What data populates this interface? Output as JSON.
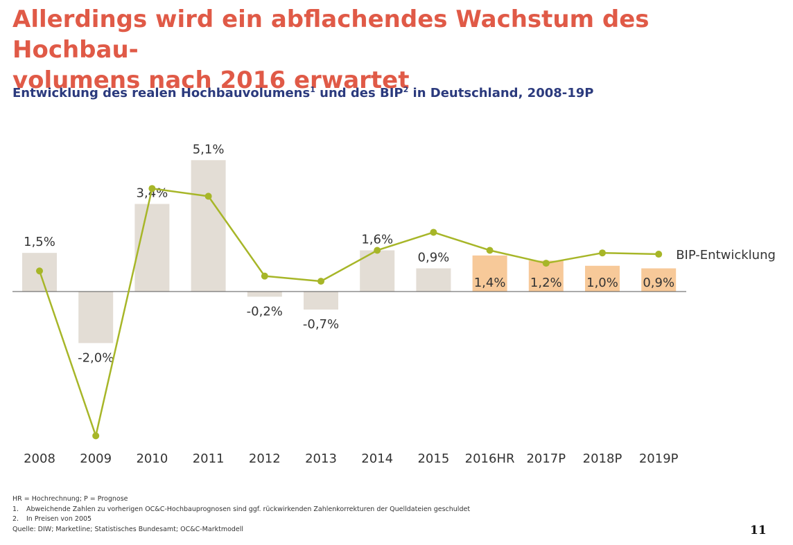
{
  "header": {
    "title": "Allerdings wird ein abflachendes Wachstum des Hochbau-\nvolumens nach 2016 erwartet",
    "subtitle_part1": "Entwicklung des realen Hochbauvolumens",
    "subtitle_sup1": "1",
    "subtitle_part2": " und des BIP",
    "subtitle_sup2": "2",
    "subtitle_part3": " in Deutschland, 2008-19P"
  },
  "chart_data": {
    "type": "bar",
    "categories": [
      "2008",
      "2009",
      "2010",
      "2011",
      "2012",
      "2013",
      "2014",
      "2015",
      "2016HR",
      "2017P",
      "2018P",
      "2019P"
    ],
    "series": [
      {
        "values": [
          1.5,
          -2.0,
          3.4,
          5.1,
          -0.2,
          -0.7,
          1.6,
          0.9,
          1.4,
          1.2,
          1.0,
          0.9
        ],
        "labels": [
          "1,5%",
          "-2,0%",
          "3,4%",
          "5,1%",
          "-0,2%",
          "-0,7%",
          "1,6%",
          "0,9%",
          "1,4%",
          "1,2%",
          "1,0%",
          "0,9%"
        ]
      },
      {
        "name": "BIP-Entwicklung",
        "type": "line",
        "values": [
          0.8,
          -5.6,
          4.0,
          3.7,
          0.6,
          0.4,
          1.6,
          2.3,
          1.6,
          1.1,
          1.5,
          1.45
        ]
      }
    ],
    "forecast_from": "2016HR",
    "ylim": [
      -6.0,
      6.0
    ],
    "grid": false,
    "colors": {
      "bar_actual": "#e3ddd5",
      "bar_forecast": "#f7c999",
      "line": "#a7b628",
      "axis": "#555555",
      "label": "#333333"
    }
  },
  "footnotes": {
    "abbrev": "HR = Hochrechnung; P = Prognose",
    "note1_num": "1.",
    "note1_text": "Abweichende Zahlen zu vorherigen OC&C-Hochbauprognosen sind ggf. rückwirkenden Zahlenkorrekturen der Quelldateien geschuldet",
    "note2_num": "2.",
    "note2_text": "In Preisen von 2005",
    "source": "Quelle: DIW; Marketline; Statistisches Bundesamt; OC&C-Marktmodell"
  },
  "page_number": "11"
}
